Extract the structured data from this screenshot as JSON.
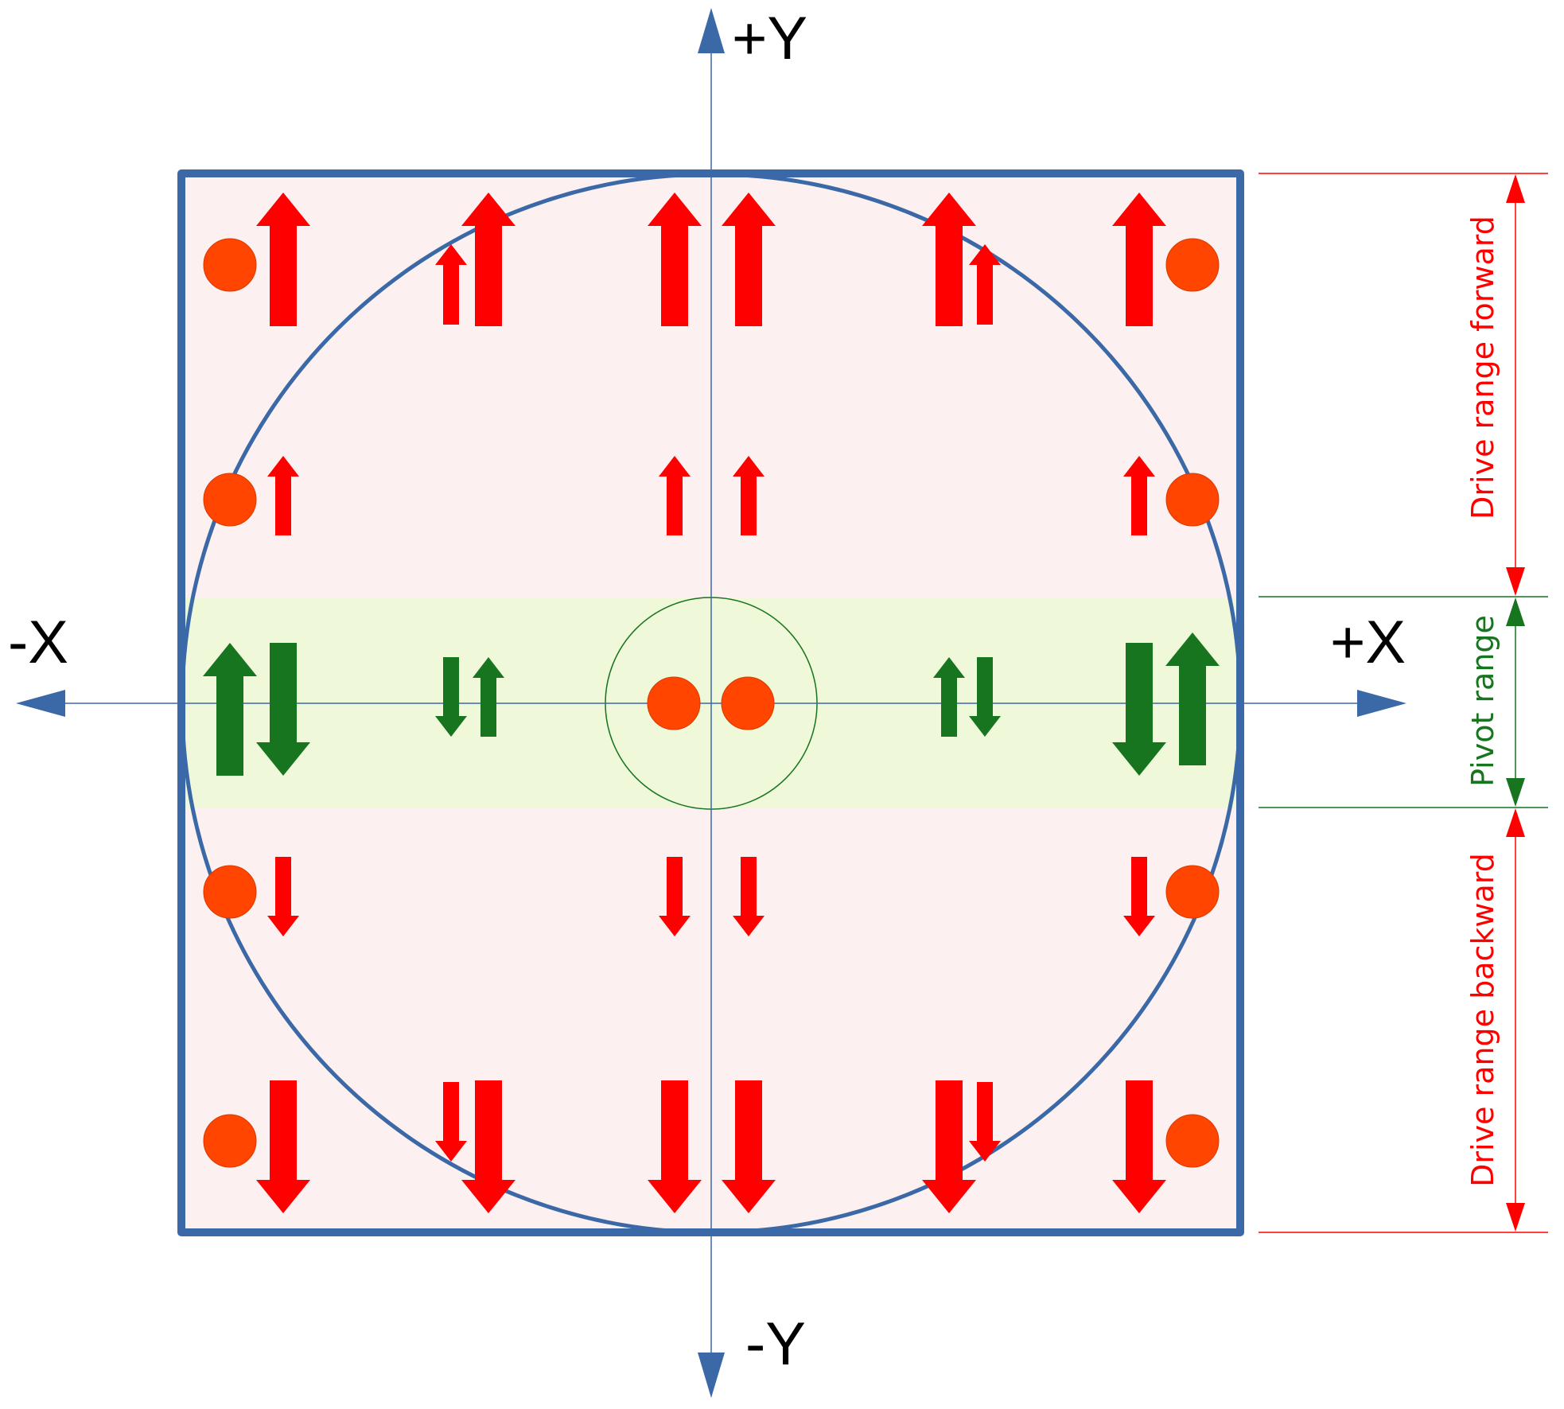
{
  "axes": {
    "plus_y": "+Y",
    "minus_y": "-Y",
    "plus_x": "+X",
    "minus_x": "-X"
  },
  "ranges": {
    "drive_forward": "Drive range forward",
    "pivot": "Pivot range",
    "drive_backward": "Drive range backward"
  },
  "colors": {
    "frame": "#3B69A8",
    "drive_fill": "#FDF0F0",
    "pivot_fill": "#EFF8D8",
    "red_arrow": "#FF0000",
    "green_arrow": "#17741F",
    "dot": "#FF4500",
    "axis_arrow": "#3B69A8"
  }
}
